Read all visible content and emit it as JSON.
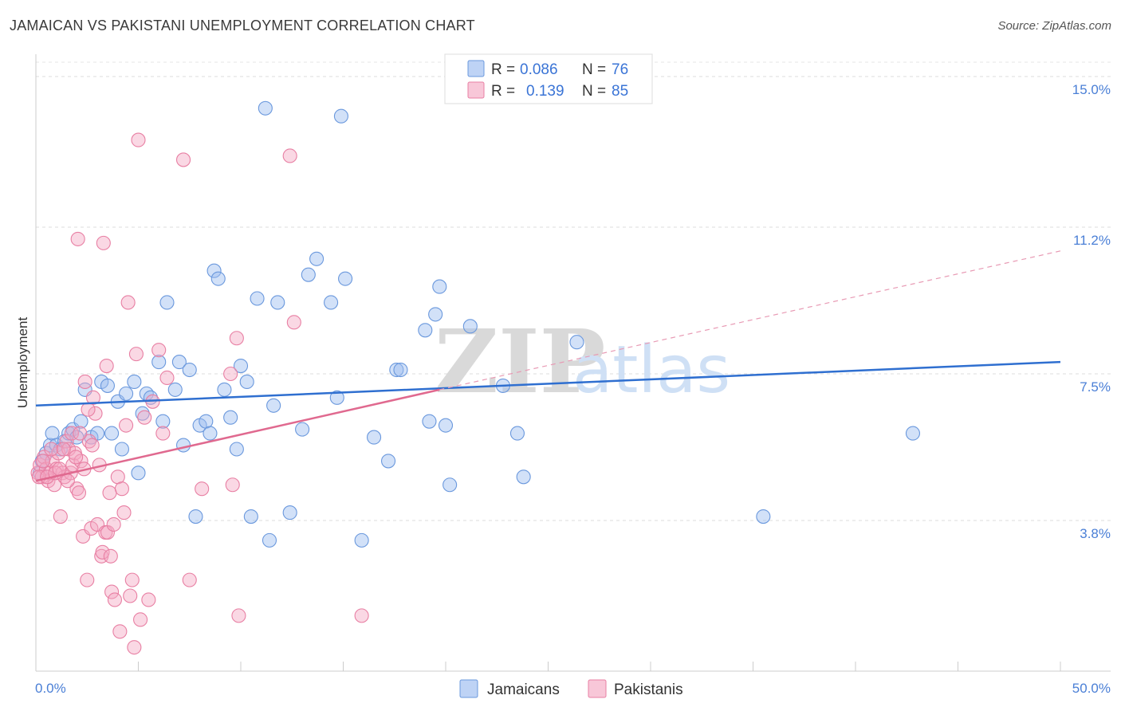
{
  "header": {
    "title": "JAMAICAN VS PAKISTANI UNEMPLOYMENT CORRELATION CHART",
    "source": "Source: ZipAtlas.com"
  },
  "watermark": {
    "zip": "ZIP",
    "atlas": "atlas"
  },
  "chart_data": {
    "type": "scatter",
    "title": "JAMAICAN VS PAKISTANI UNEMPLOYMENT CORRELATION CHART",
    "xlabel": "",
    "ylabel": "Unemployment",
    "xlim": [
      0,
      50
    ],
    "ylim": [
      0,
      15.5
    ],
    "x_tick_labels": [
      "0.0%",
      "50.0%"
    ],
    "y_ticks": [
      {
        "value": 3.8,
        "label": "3.8%"
      },
      {
        "value": 7.5,
        "label": "7.5%"
      },
      {
        "value": 11.2,
        "label": "11.2%"
      },
      {
        "value": 15.0,
        "label": "15.0%"
      }
    ],
    "grid": true,
    "legend_position": "top-center",
    "legend": [
      {
        "r_label": "R =",
        "r_value": "0.086",
        "n_label": "N =",
        "n_value": "76",
        "color": "#9bbcf0"
      },
      {
        "r_label": "R =",
        "r_value": "0.139",
        "n_label": "N =",
        "n_value": "85",
        "color": "#f4a9c3"
      }
    ],
    "series": [
      {
        "name": "Jamaicans",
        "color": "#9bbcf0",
        "stroke": "#6a98dd",
        "trend": {
          "x": [
            0,
            50
          ],
          "y": [
            6.7,
            7.8
          ],
          "color": "#2f6fd0"
        },
        "points": [
          [
            0.3,
            5.3
          ],
          [
            0.5,
            5.5
          ],
          [
            0.7,
            5.7
          ],
          [
            0.8,
            6.0
          ],
          [
            1.0,
            5.7
          ],
          [
            1.2,
            5.6
          ],
          [
            1.4,
            5.8
          ],
          [
            1.6,
            6.0
          ],
          [
            1.8,
            6.1
          ],
          [
            2.0,
            5.9
          ],
          [
            2.2,
            6.3
          ],
          [
            2.4,
            7.1
          ],
          [
            2.7,
            5.9
          ],
          [
            3.0,
            6.0
          ],
          [
            3.2,
            7.3
          ],
          [
            3.5,
            7.2
          ],
          [
            3.7,
            6.0
          ],
          [
            4.0,
            6.8
          ],
          [
            4.2,
            5.6
          ],
          [
            4.4,
            7.0
          ],
          [
            4.8,
            7.3
          ],
          [
            5.0,
            5.0
          ],
          [
            5.2,
            6.5
          ],
          [
            5.4,
            7.0
          ],
          [
            5.6,
            6.9
          ],
          [
            6.0,
            7.8
          ],
          [
            6.2,
            6.3
          ],
          [
            6.4,
            9.3
          ],
          [
            6.8,
            7.1
          ],
          [
            7.0,
            7.8
          ],
          [
            7.2,
            5.7
          ],
          [
            7.5,
            7.6
          ],
          [
            7.8,
            3.9
          ],
          [
            8.0,
            6.2
          ],
          [
            8.3,
            6.3
          ],
          [
            8.5,
            6.0
          ],
          [
            8.7,
            10.1
          ],
          [
            8.9,
            9.9
          ],
          [
            9.2,
            7.1
          ],
          [
            9.5,
            6.4
          ],
          [
            9.8,
            5.6
          ],
          [
            10.0,
            7.7
          ],
          [
            10.3,
            7.3
          ],
          [
            10.5,
            3.9
          ],
          [
            10.8,
            9.4
          ],
          [
            11.2,
            14.2
          ],
          [
            11.4,
            3.3
          ],
          [
            11.6,
            6.7
          ],
          [
            11.8,
            9.3
          ],
          [
            12.4,
            4.0
          ],
          [
            13.0,
            6.1
          ],
          [
            13.3,
            10.0
          ],
          [
            13.7,
            10.4
          ],
          [
            14.4,
            9.3
          ],
          [
            14.7,
            6.9
          ],
          [
            14.9,
            14.0
          ],
          [
            15.1,
            9.9
          ],
          [
            15.9,
            3.3
          ],
          [
            16.5,
            5.9
          ],
          [
            17.2,
            5.3
          ],
          [
            17.6,
            7.6
          ],
          [
            17.8,
            7.6
          ],
          [
            19.0,
            8.6
          ],
          [
            19.2,
            6.3
          ],
          [
            19.5,
            9.0
          ],
          [
            19.7,
            9.7
          ],
          [
            20.0,
            6.2
          ],
          [
            20.2,
            4.7
          ],
          [
            21.2,
            8.7
          ],
          [
            22.8,
            7.2
          ],
          [
            23.5,
            6.0
          ],
          [
            23.8,
            4.9
          ],
          [
            26.4,
            8.3
          ],
          [
            35.5,
            3.9
          ],
          [
            42.8,
            6.0
          ],
          [
            0.2,
            5.0
          ]
        ]
      },
      {
        "name": "Pakistanis",
        "color": "#f4a9c3",
        "stroke": "#e87fa3",
        "trend": {
          "x": [
            0,
            19.7
          ],
          "y": [
            4.8,
            7.1
          ],
          "color": "#e0698f"
        },
        "trend_dashed": {
          "x": [
            19.7,
            50
          ],
          "y": [
            7.1,
            10.6
          ],
          "color": "#e89ab4"
        },
        "points": [
          [
            0.1,
            5.0
          ],
          [
            0.2,
            5.2
          ],
          [
            0.3,
            4.9
          ],
          [
            0.4,
            5.4
          ],
          [
            0.5,
            5.1
          ],
          [
            0.6,
            4.8
          ],
          [
            0.7,
            5.0
          ],
          [
            0.8,
            5.3
          ],
          [
            0.9,
            4.7
          ],
          [
            1.0,
            5.1
          ],
          [
            1.1,
            5.5
          ],
          [
            1.2,
            3.9
          ],
          [
            1.3,
            5.0
          ],
          [
            1.4,
            4.9
          ],
          [
            1.5,
            5.8
          ],
          [
            1.6,
            5.6
          ],
          [
            1.7,
            5.0
          ],
          [
            1.8,
            5.2
          ],
          [
            1.9,
            5.5
          ],
          [
            2.0,
            4.6
          ],
          [
            2.1,
            4.5
          ],
          [
            2.2,
            5.3
          ],
          [
            2.3,
            3.4
          ],
          [
            2.4,
            7.3
          ],
          [
            2.5,
            2.3
          ],
          [
            2.6,
            5.8
          ],
          [
            2.7,
            3.6
          ],
          [
            2.8,
            6.9
          ],
          [
            2.9,
            6.5
          ],
          [
            3.0,
            3.7
          ],
          [
            3.1,
            5.2
          ],
          [
            3.2,
            2.9
          ],
          [
            3.3,
            10.8
          ],
          [
            3.4,
            3.5
          ],
          [
            3.5,
            3.5
          ],
          [
            3.6,
            4.5
          ],
          [
            3.7,
            2.0
          ],
          [
            3.8,
            3.7
          ],
          [
            4.0,
            4.9
          ],
          [
            4.1,
            1.0
          ],
          [
            4.2,
            4.6
          ],
          [
            4.4,
            6.2
          ],
          [
            4.5,
            9.3
          ],
          [
            4.6,
            1.9
          ],
          [
            4.7,
            2.3
          ],
          [
            4.8,
            0.6
          ],
          [
            4.9,
            8.0
          ],
          [
            5.0,
            13.4
          ],
          [
            5.1,
            1.3
          ],
          [
            5.3,
            6.4
          ],
          [
            5.5,
            1.8
          ],
          [
            5.7,
            6.8
          ],
          [
            6.0,
            8.1
          ],
          [
            6.2,
            6.0
          ],
          [
            6.4,
            7.4
          ],
          [
            7.2,
            12.9
          ],
          [
            7.5,
            2.3
          ],
          [
            8.1,
            4.6
          ],
          [
            9.5,
            7.5
          ],
          [
            9.6,
            4.7
          ],
          [
            9.8,
            8.4
          ],
          [
            9.9,
            1.4
          ],
          [
            12.4,
            13.0
          ],
          [
            12.6,
            8.8
          ],
          [
            15.9,
            1.4
          ],
          [
            0.15,
            4.9
          ],
          [
            0.35,
            5.3
          ],
          [
            0.55,
            4.9
          ],
          [
            0.75,
            5.6
          ],
          [
            0.95,
            5.0
          ],
          [
            1.15,
            5.1
          ],
          [
            1.35,
            5.6
          ],
          [
            1.55,
            4.8
          ],
          [
            1.75,
            6.0
          ],
          [
            1.95,
            5.4
          ],
          [
            2.15,
            6.0
          ],
          [
            2.35,
            5.1
          ],
          [
            2.55,
            6.6
          ],
          [
            2.75,
            5.7
          ],
          [
            3.25,
            3.0
          ],
          [
            3.45,
            7.7
          ],
          [
            3.65,
            2.9
          ],
          [
            3.85,
            1.8
          ],
          [
            4.3,
            4.0
          ],
          [
            2.05,
            10.9
          ]
        ]
      }
    ]
  },
  "bottom_legend": [
    {
      "label": "Jamaicans"
    },
    {
      "label": "Pakistanis"
    }
  ]
}
